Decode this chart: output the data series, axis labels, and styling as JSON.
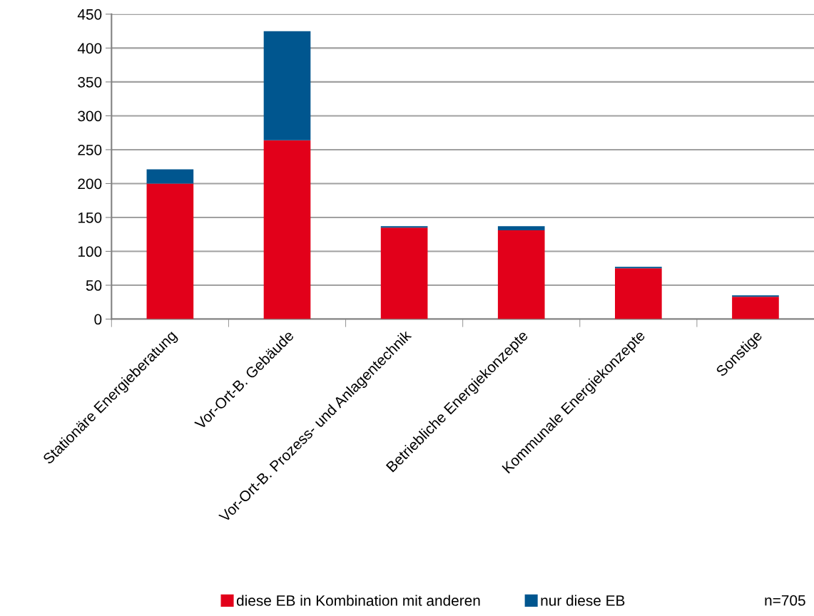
{
  "chart_data": {
    "type": "bar",
    "stacked": true,
    "categories": [
      "Stationäre Energieberatung",
      "Vor-Ort-B. Gebäude",
      "Vor-Ort-B. Prozess- und Anlagentechnik",
      "Betriebliche Energiekonzepte",
      "Kommunale Energiekonzepte",
      "Sonstige"
    ],
    "series": [
      {
        "name": "diese EB in Kombination mit anderen",
        "color": "#e2001a",
        "values": [
          200,
          264,
          135,
          131,
          75,
          33
        ]
      },
      {
        "name": "nur diese EB",
        "color": "#00568f",
        "values": [
          21,
          161,
          2,
          6,
          2,
          2
        ]
      }
    ],
    "ylim": [
      0,
      450
    ],
    "yticks": [
      0,
      50,
      100,
      150,
      200,
      250,
      300,
      350,
      400,
      450
    ],
    "grid": "y",
    "legend": "bottom",
    "annotations": [
      "n=705"
    ]
  }
}
